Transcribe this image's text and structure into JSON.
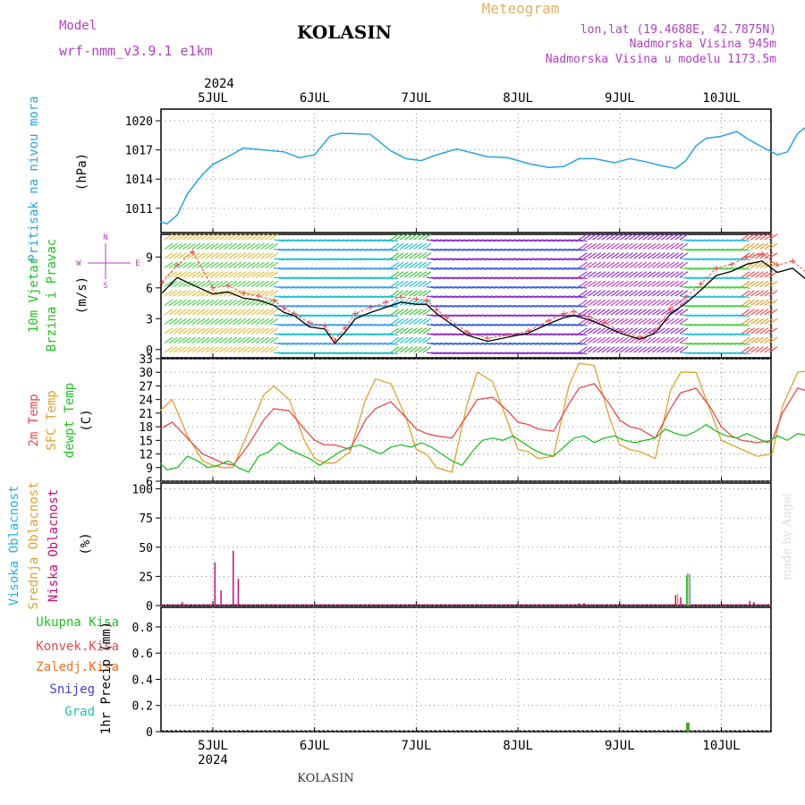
{
  "header": {
    "model_label": "Model",
    "model_name": "wrf-nmm_v3.9.1 e1km",
    "station": "KOLASIN",
    "product": "Meteogram",
    "lonlat": "lon,lat (19.4688E, 42.7875N)",
    "elevation": "Nadmorska Visina 945m",
    "model_elevation": "Nadmorska Visina u modelu 1173.5m",
    "footer_station": "KOLASIN",
    "credit": "made by Angel"
  },
  "colors": {
    "pressure": "#29a3e0",
    "t2m": "#e84a4a",
    "sfc": "#e0a030",
    "dew": "#22c022",
    "high_cloud": "#22b0e0",
    "mid_cloud": "#e0a030",
    "low_cloud": "#c0107a",
    "wind_label": "#22c022",
    "compass": "#b040c0",
    "precip_total": "#22c022",
    "precip_conv": "#e84a4a",
    "precip_frz": "#f07020",
    "precip_snow": "#4040d0",
    "precip_grad": "#20c0b0",
    "gust": "#e84a4a",
    "speed": "#000000"
  },
  "chart_data": [
    {
      "id": "pressure",
      "type": "line",
      "ylabel": "Pritisak na nivou mora",
      "unit": "(hPa)",
      "ylim": [
        1008.5,
        1021.2
      ],
      "yticks": [
        1011,
        1014,
        1017,
        1020
      ],
      "x_unit": "days from 2024-07-05 00UTC",
      "series": [
        {
          "name": "Pritisak na nivou mora",
          "x": [
            -0.52,
            -0.45,
            -0.35,
            -0.25,
            -0.1,
            0,
            0.2,
            0.3,
            0.5,
            0.7,
            0.85,
            1.0,
            1.15,
            1.25,
            1.35,
            1.55,
            1.75,
            1.9,
            2.05,
            2.2,
            2.4,
            2.55,
            2.7,
            2.9,
            3.1,
            3.3,
            3.45,
            3.6,
            3.75,
            3.95,
            4.1,
            4.25,
            4.4,
            4.55,
            4.65,
            4.75,
            4.85,
            5.0,
            5.15,
            5.25,
            5.4,
            5.55,
            5.65,
            5.75,
            5.9,
            6.0,
            6.12,
            6.25,
            6.4,
            6.5
          ],
          "values": [
            1009.6,
            1009.4,
            1010.3,
            1012.5,
            1014.5,
            1015.5,
            1016.6,
            1017.2,
            1017.0,
            1016.8,
            1016.2,
            1016.5,
            1018.4,
            1018.7,
            1018.7,
            1018.6,
            1016.9,
            1016.1,
            1015.9,
            1016.5,
            1017.1,
            1016.7,
            1016.3,
            1016.2,
            1015.6,
            1015.2,
            1015.3,
            1016.1,
            1016.1,
            1015.7,
            1016.1,
            1015.8,
            1015.4,
            1015.1,
            1015.9,
            1017.4,
            1018.2,
            1018.4,
            1018.9,
            1018.2,
            1017.3,
            1016.5,
            1016.8,
            1018.7,
            1019.9,
            1020.1,
            1020.1,
            1019.4,
            1017.8,
            1017.3
          ]
        }
      ]
    },
    {
      "id": "wind",
      "type": "line",
      "ylabel": "10m Vjetar Brzina i Pravac",
      "unit": "(m/s)",
      "ylim": [
        -0.8,
        11.2
      ],
      "yticks": [
        0,
        3,
        6,
        9
      ],
      "compass": {
        "n": "N",
        "s": "S",
        "w": "W",
        "e": "E"
      },
      "series": [
        {
          "name": "speed",
          "x": [
            -0.5,
            -0.35,
            -0.2,
            0,
            0.15,
            0.3,
            0.45,
            0.6,
            0.7,
            0.8,
            0.95,
            1.1,
            1.2,
            1.3,
            1.4,
            1.55,
            1.7,
            1.85,
            2.0,
            2.1,
            2.2,
            2.3,
            2.5,
            2.7,
            2.9,
            3.1,
            3.3,
            3.45,
            3.55,
            3.7,
            3.85,
            4.0,
            4.2,
            4.35,
            4.5,
            4.65,
            4.8,
            4.95,
            5.1,
            5.25,
            5.4,
            5.55,
            5.7,
            5.85,
            6.0,
            6.15,
            6.3,
            6.5
          ],
          "values": [
            5.5,
            7.0,
            6.3,
            5.4,
            5.6,
            5.0,
            4.8,
            4.3,
            3.6,
            3.3,
            2.2,
            2.0,
            0.6,
            1.7,
            3.0,
            3.6,
            4.1,
            4.6,
            4.4,
            4.4,
            3.5,
            2.8,
            1.4,
            0.8,
            1.2,
            1.6,
            2.5,
            3.1,
            3.3,
            2.9,
            2.3,
            1.6,
            1.0,
            1.6,
            3.5,
            4.5,
            5.8,
            7.2,
            7.6,
            8.3,
            8.6,
            7.5,
            7.9,
            6.7,
            5.3,
            6.8,
            6.8,
            6.1
          ]
        },
        {
          "name": "gust",
          "x": [
            -0.5,
            -0.35,
            -0.2,
            0,
            0.15,
            0.3,
            0.45,
            0.6,
            0.7,
            0.8,
            0.95,
            1.1,
            1.2,
            1.3,
            1.4,
            1.55,
            1.7,
            1.85,
            2.0,
            2.1,
            2.2,
            2.3,
            2.5,
            2.7,
            2.9,
            3.1,
            3.3,
            3.45,
            3.55,
            3.7,
            3.85,
            4.0,
            4.2,
            4.35,
            4.5,
            4.65,
            4.8,
            4.95,
            5.1,
            5.25,
            5.4,
            5.55,
            5.7,
            5.85,
            6.0,
            6.15,
            6.3,
            6.5
          ],
          "values": [
            6.5,
            8.2,
            9.5,
            6.0,
            6.2,
            5.5,
            5.2,
            4.8,
            4.0,
            3.5,
            2.6,
            2.3,
            0.9,
            2.1,
            3.5,
            4.1,
            4.6,
            5.1,
            4.9,
            4.8,
            3.9,
            3.1,
            1.7,
            1.1,
            1.4,
            1.8,
            2.8,
            3.5,
            3.7,
            3.2,
            2.6,
            1.8,
            1.2,
            1.8,
            4.0,
            5.1,
            6.4,
            7.9,
            8.3,
            9.0,
            9.3,
            8.2,
            8.6,
            7.4,
            6.0,
            7.5,
            7.6,
            8.8
          ]
        }
      ]
    },
    {
      "id": "temperature",
      "type": "line",
      "ylabels": [
        "2m Temp",
        "SFC Temp",
        "dewpt Temp"
      ],
      "unit": "(C)",
      "ylim": [
        6,
        33
      ],
      "yticks": [
        6,
        9,
        12,
        15,
        18,
        21,
        24,
        27,
        30,
        33
      ],
      "series": [
        {
          "name": "2m Temp",
          "x": [
            -0.52,
            -0.4,
            -0.25,
            -0.1,
            0.0,
            0.1,
            0.2,
            0.35,
            0.5,
            0.6,
            0.75,
            0.9,
            1.0,
            1.1,
            1.2,
            1.35,
            1.5,
            1.6,
            1.75,
            1.9,
            2.0,
            2.1,
            2.2,
            2.35,
            2.5,
            2.6,
            2.75,
            2.9,
            3.0,
            3.1,
            3.2,
            3.35,
            3.5,
            3.6,
            3.75,
            3.9,
            4.0,
            4.1,
            4.2,
            4.35,
            4.5,
            4.6,
            4.75,
            4.9,
            5.0,
            5.1,
            5.2,
            5.35,
            5.5,
            5.6,
            5.75,
            5.9,
            6.0,
            6.1,
            6.2,
            6.35,
            6.5
          ],
          "values": [
            17.5,
            19.0,
            15.5,
            12.0,
            11.0,
            10.0,
            9.5,
            14.0,
            19.5,
            22.0,
            21.5,
            17.5,
            15.0,
            14.0,
            14.0,
            13.0,
            19.5,
            22.0,
            23.5,
            20.0,
            17.5,
            16.5,
            16.0,
            15.5,
            20.5,
            24.0,
            24.5,
            21.5,
            19.0,
            18.5,
            17.5,
            17.0,
            23.0,
            26.5,
            27.5,
            23.0,
            19.5,
            18.0,
            17.5,
            15.5,
            22.0,
            25.5,
            26.5,
            22.0,
            18.0,
            16.0,
            15.0,
            14.5,
            15.0,
            21.0,
            26.5,
            25.5,
            20.5,
            15.0,
            14.0,
            22.0,
            26.5
          ]
        },
        {
          "name": "SFC Temp",
          "x": [
            -0.52,
            -0.4,
            -0.25,
            -0.1,
            0.0,
            0.1,
            0.2,
            0.35,
            0.5,
            0.6,
            0.75,
            0.9,
            1.0,
            1.1,
            1.2,
            1.35,
            1.5,
            1.6,
            1.75,
            1.9,
            2.0,
            2.1,
            2.2,
            2.35,
            2.5,
            2.6,
            2.75,
            2.9,
            3.0,
            3.1,
            3.2,
            3.35,
            3.5,
            3.6,
            3.75,
            3.9,
            4.0,
            4.1,
            4.2,
            4.35,
            4.5,
            4.6,
            4.75,
            4.9,
            5.0,
            5.1,
            5.2,
            5.35,
            5.5,
            5.6,
            5.75,
            5.9,
            6.0,
            6.1,
            6.2,
            6.35,
            6.5
          ],
          "values": [
            21.5,
            24.0,
            16.0,
            10.5,
            9.5,
            9.0,
            9.0,
            17.0,
            25.0,
            27.0,
            24.0,
            15.0,
            11.0,
            10.0,
            10.0,
            12.5,
            24.0,
            28.5,
            27.5,
            20.0,
            13.0,
            12.0,
            9.0,
            8.0,
            23.0,
            30.0,
            28.0,
            19.0,
            13.0,
            12.5,
            11.0,
            11.5,
            27.0,
            32.0,
            31.5,
            20.0,
            14.0,
            13.0,
            12.5,
            11.0,
            26.0,
            30.0,
            30.0,
            21.0,
            15.0,
            14.0,
            13.0,
            11.5,
            12.0,
            22.5,
            30.0,
            30.5,
            22.0,
            14.0,
            13.0,
            22.0,
            30.5
          ]
        },
        {
          "name": "dewpt Temp",
          "x": [
            -0.52,
            -0.45,
            -0.35,
            -0.25,
            -0.15,
            -0.05,
            0.05,
            0.15,
            0.25,
            0.35,
            0.45,
            0.55,
            0.65,
            0.75,
            0.85,
            0.95,
            1.05,
            1.15,
            1.25,
            1.35,
            1.45,
            1.55,
            1.65,
            1.75,
            1.85,
            1.95,
            2.05,
            2.15,
            2.25,
            2.35,
            2.45,
            2.55,
            2.65,
            2.75,
            2.85,
            2.95,
            3.05,
            3.15,
            3.25,
            3.35,
            3.45,
            3.55,
            3.65,
            3.75,
            3.85,
            3.95,
            4.05,
            4.15,
            4.25,
            4.35,
            4.45,
            4.55,
            4.65,
            4.75,
            4.85,
            4.95,
            5.05,
            5.15,
            5.25,
            5.35,
            5.45,
            5.55,
            5.65,
            5.75,
            5.85,
            5.95,
            6.05,
            6.15,
            6.25,
            6.35,
            6.45,
            6.5
          ],
          "values": [
            10.0,
            8.5,
            9.0,
            11.5,
            10.5,
            9.0,
            9.5,
            10.5,
            9.0,
            8.0,
            11.5,
            12.5,
            14.5,
            13.0,
            12.0,
            11.0,
            9.5,
            11.0,
            12.5,
            13.5,
            14.0,
            13.0,
            12.0,
            13.5,
            14.0,
            13.5,
            14.5,
            13.5,
            12.0,
            10.5,
            9.5,
            12.5,
            15.0,
            15.5,
            15.0,
            16.0,
            14.5,
            13.0,
            12.0,
            11.5,
            13.5,
            15.5,
            16.0,
            14.5,
            15.5,
            16.0,
            15.0,
            14.5,
            15.0,
            15.5,
            17.5,
            16.5,
            16.0,
            17.0,
            18.5,
            17.0,
            16.0,
            15.5,
            16.5,
            15.5,
            14.5,
            16.0,
            15.0,
            16.5,
            16.0,
            15.5,
            15.0,
            14.5,
            14.0,
            15.5,
            16.5,
            16.0
          ]
        }
      ]
    },
    {
      "id": "clouds",
      "type": "bar",
      "ylabels": [
        "Visoka Oblacnost",
        "Srednja Oblacnost",
        "Niska Oblacnost"
      ],
      "unit": "(%)",
      "ylim": [
        0,
        105
      ],
      "yticks": [
        0,
        25,
        50,
        75,
        100
      ],
      "series": [
        {
          "name": "Niska Oblacnost",
          "x": [
            -0.3,
            0.02,
            0.08,
            0.2,
            0.25,
            3.6,
            3.65,
            4.55,
            4.6,
            5.28,
            5.32,
            5.95,
            6.36,
            6.4
          ],
          "values": [
            3,
            37,
            13,
            47,
            23,
            2,
            2,
            9,
            7,
            4,
            3,
            2,
            9,
            7
          ]
        },
        {
          "name": "Srednja Oblacnost",
          "x": [
            4.57,
            4.67
          ],
          "values": [
            10,
            28
          ]
        },
        {
          "name": "Visoka Oblacnost",
          "x": [
            4.69
          ],
          "values": [
            27
          ]
        }
      ]
    },
    {
      "id": "precip",
      "type": "bar",
      "ylabel": "1hr Precip",
      "unit": "(mm)",
      "ylim": [
        0,
        0.95
      ],
      "yticks": [
        0,
        0.2,
        0.4,
        0.6,
        0.8
      ],
      "legend": [
        "Ukupna Kisa",
        "Konvek.Kisa",
        "Zaledj.Kisa",
        "Snijeg",
        "Grad"
      ],
      "series": [
        {
          "name": "Ukupna Kisa",
          "x": [
            4.67
          ],
          "values": [
            0.07
          ]
        }
      ]
    }
  ],
  "x_axis": {
    "year": "2024",
    "day_labels": [
      "5JUL",
      "6JUL",
      "7JUL",
      "8JUL",
      "9JUL",
      "10JUL"
    ]
  }
}
